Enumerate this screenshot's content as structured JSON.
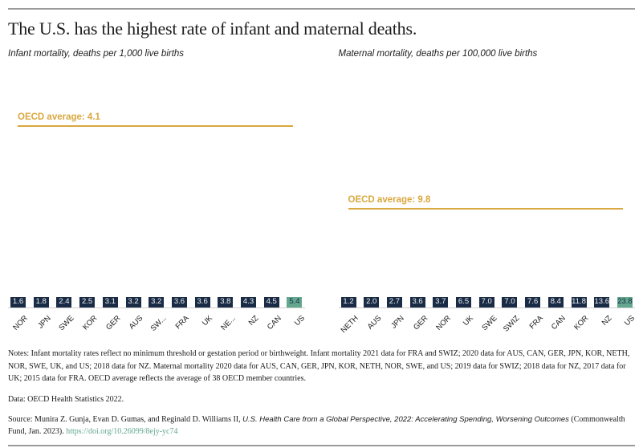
{
  "page": {
    "title": "The U.S. has the highest rate of infant and maternal deaths.",
    "notes": "Notes: Infant mortality rates reflect no minimum threshold or gestation period or birthweight. Infant mortality 2021 data for FRA and SWIZ; 2020 data for AUS, CAN, GER, JPN, KOR, NETH, NOR, SWE, UK, and US; 2018 data for NZ. Maternal mortality 2020 data for AUS, CAN, GER, JPN, KOR, NETH, NOR, SWE, and US; 2019 data for SWIZ; 2018 data for NZ, 2017 data for UK; 2015 data for FRA. OECD average reflects the average of 38 OECD member countries.",
    "data_line": "Data: OECD Health Statistics 2022.",
    "source_prefix": "Source: Munira Z. Gunja, Evan D. Gumas, and Reginald D. Williams II, ",
    "source_italic": "U.S. Health Care from a Global Perspective, 2022: Accelerating Spending, Worsening Outcomes",
    "source_suffix": " (Commonwealth Fund, Jan. 2023). ",
    "source_link": "https://doi.org/10.26099/8ejy-yc74"
  },
  "colors": {
    "bar_navy": "#1a2c45",
    "bar_highlight_teal": "#62a78e",
    "oecd_gold": "#d9a83e",
    "link_teal": "#62a78e",
    "rule_gray": "#9b9b9b"
  },
  "chart_data": [
    {
      "type": "bar",
      "title": "Infant mortality, deaths per 1,000 live births",
      "categories": [
        "NOR",
        "JPN",
        "SWE",
        "KOR",
        "GER",
        "AUS",
        "SW...",
        "FRA",
        "UK",
        "NE...",
        "NZ",
        "CAN",
        "US"
      ],
      "values": [
        1.6,
        1.8,
        2.4,
        2.5,
        3.1,
        3.2,
        3.2,
        3.6,
        3.6,
        3.8,
        4.3,
        4.5,
        5.4
      ],
      "value_labels": [
        "1.6",
        "1.8",
        "2.4",
        "2.5",
        "3.1",
        "3.2",
        "3.2",
        "3.6",
        "3.6",
        "3.8",
        "4.3",
        "4.5",
        "5.4"
      ],
      "highlight_category": "US",
      "oecd_average": 4.1,
      "oecd_label": "OECD average: 4.1",
      "ylim": [
        0,
        5.4
      ],
      "grid": false,
      "legend": false
    },
    {
      "type": "bar",
      "title": "Maternal mortality, deaths per 100,000 live births",
      "categories": [
        "NETH",
        "AUS",
        "JPN",
        "GER",
        "NOR",
        "UK",
        "SWE",
        "SWIZ",
        "FRA",
        "CAN",
        "KOR",
        "NZ",
        "US"
      ],
      "values": [
        1.2,
        2.0,
        2.7,
        3.6,
        3.7,
        6.5,
        7.0,
        7.0,
        7.6,
        8.4,
        11.8,
        13.6,
        23.8
      ],
      "value_labels": [
        "1.2",
        "2.0",
        "2.7",
        "3.6",
        "3.7",
        "6.5",
        "7.0",
        "7.0",
        "7.6",
        "8.4",
        "11.8",
        "13.6",
        "23.8"
      ],
      "highlight_category": "US",
      "oecd_average": 9.8,
      "oecd_label": "OECD average: 9.8",
      "ylim": [
        0,
        23.8
      ],
      "grid": false,
      "legend": false
    }
  ]
}
